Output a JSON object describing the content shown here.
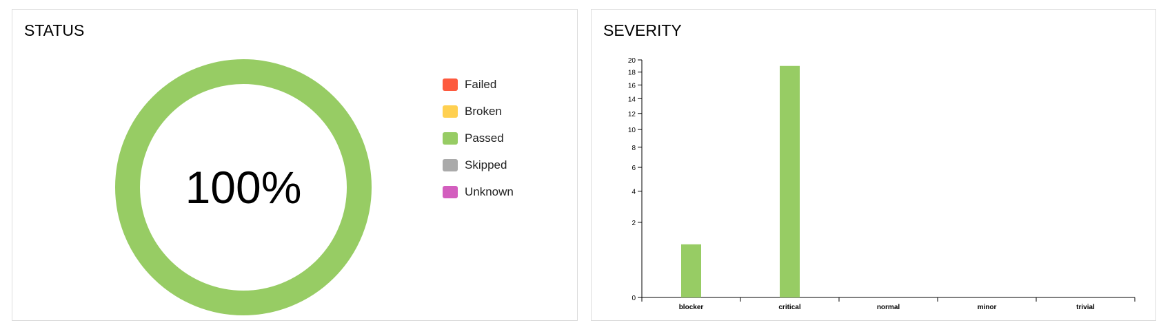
{
  "status": {
    "title": "STATUS",
    "center_label": "100%",
    "colors": {
      "passed": "#97cc64"
    },
    "legend": [
      {
        "label": "Failed",
        "color": "#fd5a3e"
      },
      {
        "label": "Broken",
        "color": "#ffd050"
      },
      {
        "label": "Passed",
        "color": "#97cc64"
      },
      {
        "label": "Skipped",
        "color": "#aaaaaa"
      },
      {
        "label": "Unknown",
        "color": "#d35ebe"
      }
    ]
  },
  "severity": {
    "title": "SEVERITY"
  },
  "chart_data": [
    {
      "type": "pie",
      "categories": [
        "Failed",
        "Broken",
        "Passed",
        "Skipped",
        "Unknown"
      ],
      "values": [
        0,
        0,
        100,
        0,
        0
      ],
      "unit": "%",
      "donut": true,
      "center_label": "100%"
    },
    {
      "type": "bar",
      "categories": [
        "blocker",
        "critical",
        "normal",
        "minor",
        "trivial"
      ],
      "values": [
        1,
        19,
        0,
        0,
        0
      ],
      "y_ticks": [
        0,
        2,
        4,
        6,
        8,
        10,
        12,
        14,
        16,
        18,
        20
      ],
      "ylim": [
        0,
        20
      ],
      "scale": "sqrt",
      "color": "#97cc64",
      "grid": false,
      "xlabel": "",
      "ylabel": ""
    }
  ]
}
